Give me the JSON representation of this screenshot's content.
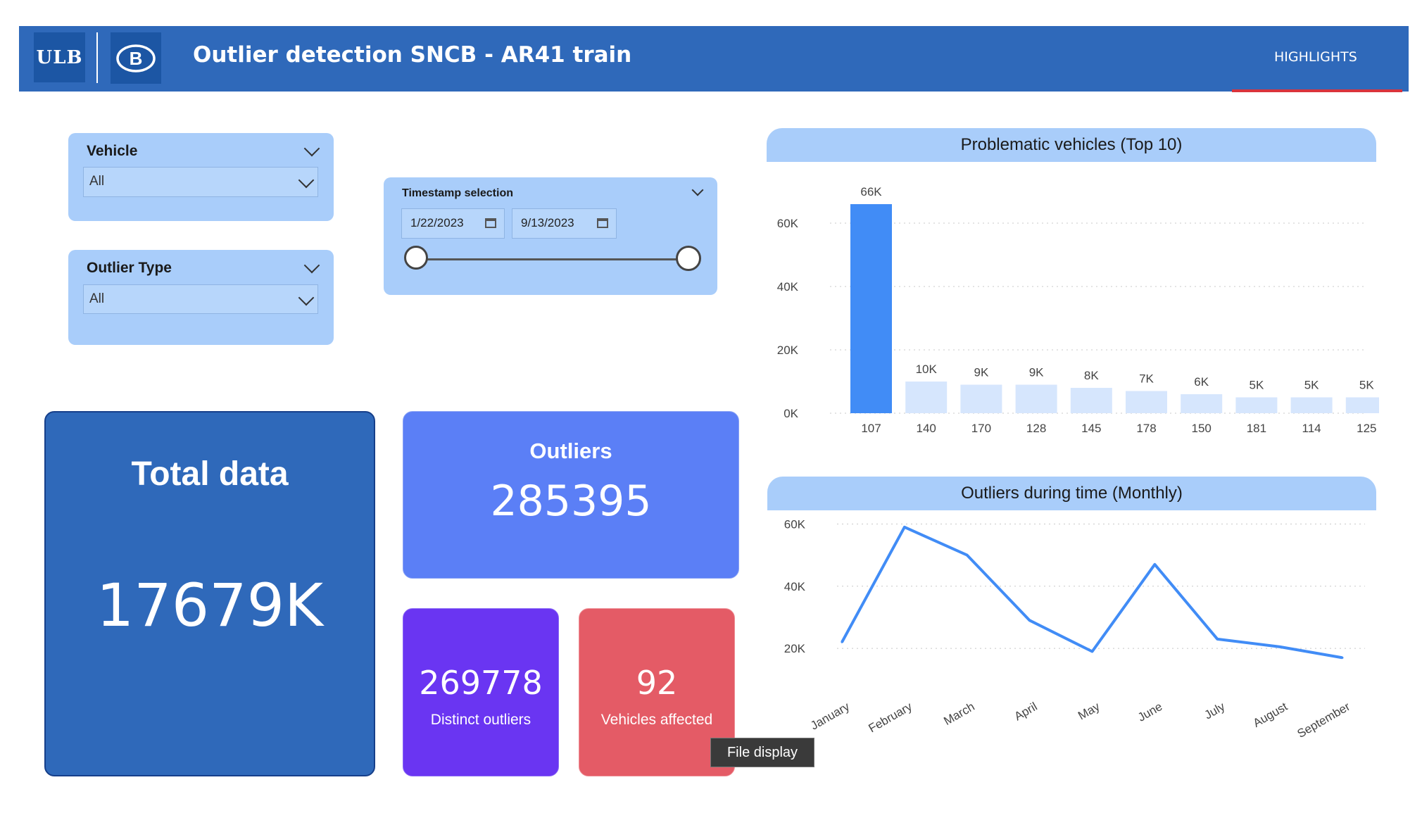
{
  "header": {
    "title": "Outlier detection SNCB - AR41 train",
    "ulb_logo_text": "ULB",
    "sncb_logo_text": "B",
    "tabs": [
      {
        "label": "HIGHLIGHTS",
        "active": true
      }
    ],
    "background": "#2F69BA",
    "active_tab_underline": "#D9343C"
  },
  "filters": {
    "vehicle": {
      "title": "Vehicle",
      "value": "All"
    },
    "outlier_type": {
      "title": "Outlier Type",
      "value": "All"
    },
    "timestamp": {
      "title": "Timestamp selection",
      "start": "1/22/2023",
      "end": "9/13/2023"
    }
  },
  "kpis": {
    "total": {
      "label": "Total data",
      "value": "17679K",
      "color": "#2F69BA"
    },
    "outliers": {
      "label": "Outliers",
      "value": "285395",
      "color": "#5B7FF6"
    },
    "distinct": {
      "label": "Distinct outliers",
      "value": "269778",
      "color": "#6A35F2"
    },
    "vehicles": {
      "label": "Vehicles affected",
      "value": "92",
      "color": "#E45B66"
    }
  },
  "tooltip": {
    "text": "File display"
  },
  "chart_data": [
    {
      "type": "bar",
      "title": "Problematic vehicles (Top 10)",
      "categories": [
        "107",
        "140",
        "170",
        "128",
        "145",
        "178",
        "150",
        "181",
        "114",
        "125"
      ],
      "values": [
        66000,
        10000,
        9000,
        9000,
        8000,
        7000,
        6000,
        5000,
        5000,
        5000
      ],
      "data_labels": [
        "66K",
        "10K",
        "9K",
        "9K",
        "8K",
        "7K",
        "6K",
        "5K",
        "5K",
        "5K"
      ],
      "highlighted_index": 0,
      "highlight_color": "#418CF6",
      "muted_color": "#D6E6FD",
      "ylim": [
        0,
        70000
      ],
      "yticks": [
        0,
        20000,
        40000,
        60000
      ],
      "ytick_labels": [
        "0K",
        "20K",
        "40K",
        "60K"
      ],
      "grid": true
    },
    {
      "type": "line",
      "title": "Outliers during time (Monthly)",
      "categories": [
        "January",
        "February",
        "March",
        "April",
        "May",
        "June",
        "July",
        "August",
        "September"
      ],
      "values": [
        22000,
        59000,
        50000,
        29000,
        19000,
        47000,
        23000,
        20500,
        17000
      ],
      "color": "#418CF6",
      "ylim": [
        13000,
        61000
      ],
      "yticks": [
        20000,
        40000,
        60000
      ],
      "ytick_labels": [
        "20K",
        "40K",
        "60K"
      ],
      "grid": true
    }
  ]
}
